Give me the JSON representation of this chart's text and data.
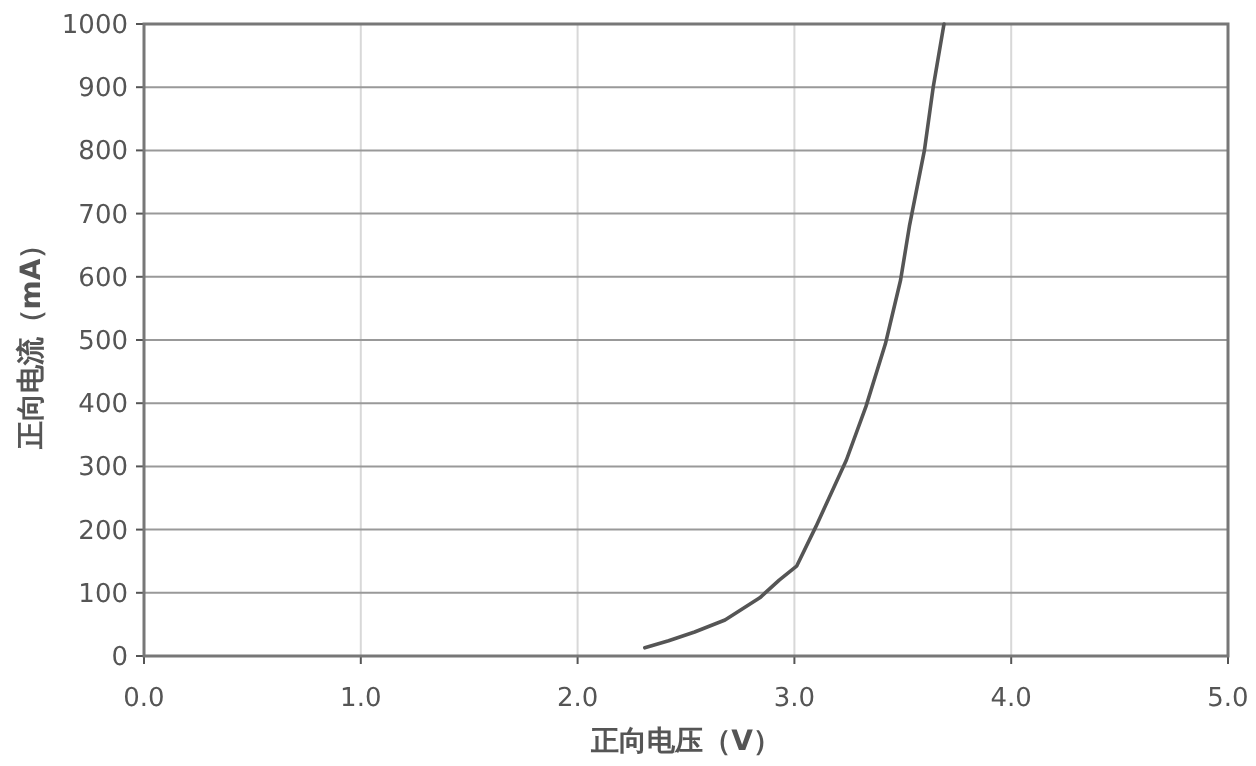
{
  "chart_data": {
    "type": "line",
    "xlabel": "正向电压（V）",
    "ylabel": "正向电流（mA）",
    "xlim": [
      0,
      5
    ],
    "ylim": [
      0,
      1000
    ],
    "xticks": [
      {
        "value": 0,
        "label": "0.0"
      },
      {
        "value": 1,
        "label": "1.0"
      },
      {
        "value": 2,
        "label": "2.0"
      },
      {
        "value": 3,
        "label": "3.0"
      },
      {
        "value": 4,
        "label": "4.0"
      },
      {
        "value": 5,
        "label": "5.0"
      }
    ],
    "yticks": [
      0,
      100,
      200,
      300,
      400,
      500,
      600,
      700,
      800,
      900,
      1000
    ],
    "grid": true,
    "marker": "none",
    "line_style": "solid",
    "series": [
      {
        "color": "#555555",
        "x": [
          2.31,
          2.42,
          2.54,
          2.68,
          2.84,
          2.93,
          3.01,
          3.1,
          3.24,
          3.33,
          3.42,
          3.49,
          3.53,
          3.6,
          3.64,
          3.69
        ],
        "values": [
          13,
          24,
          38,
          57,
          92,
          120,
          142,
          205,
          310,
          395,
          494,
          595,
          680,
          800,
          900,
          1000
        ]
      }
    ]
  }
}
